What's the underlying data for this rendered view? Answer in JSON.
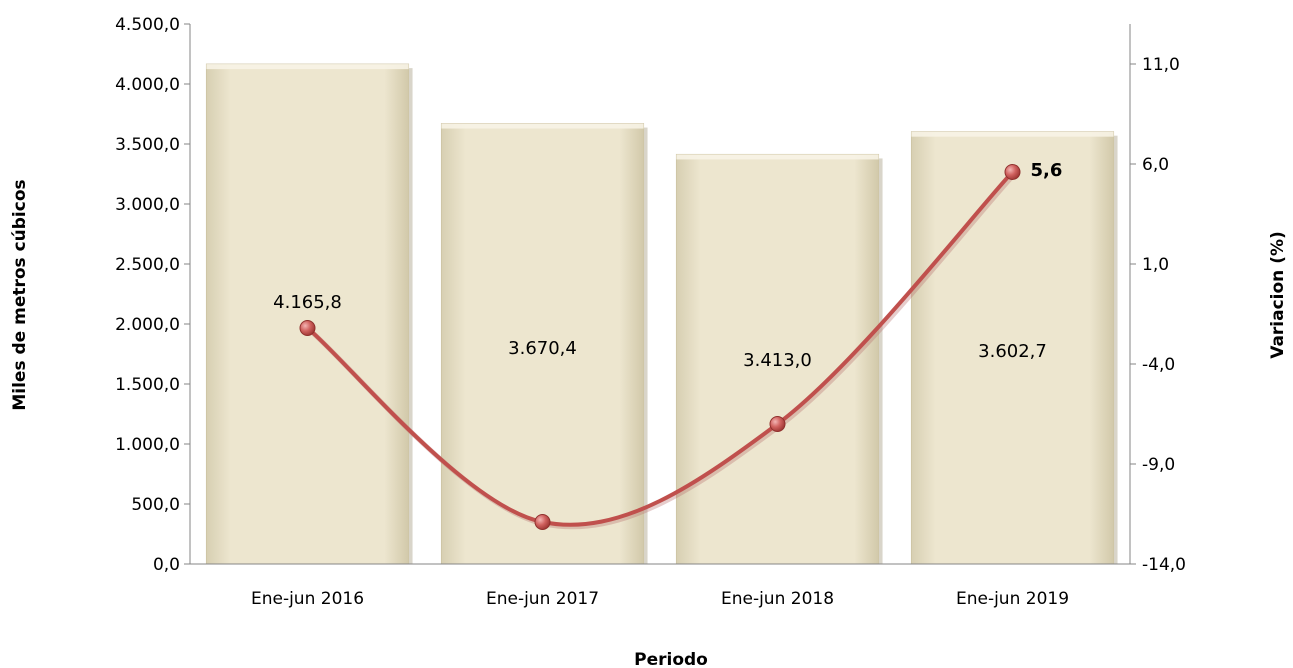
{
  "chart_data": {
    "type": "bar",
    "categories": [
      "Ene-jun 2016",
      "Ene-jun 2017",
      "Ene-jun 2018",
      "Ene-jun 2019"
    ],
    "series": [
      {
        "values": [
          4165.8,
          3670.4,
          3413.0,
          3602.7
        ],
        "axis": "left",
        "color": "#ebe3c9"
      },
      {
        "type": "line",
        "values": [
          null,
          -11.9,
          -7.0,
          5.6
        ],
        "axis": "right",
        "color": "#c0504d"
      }
    ],
    "bar_labels": [
      "4.165,8",
      "3.670,4",
      "3.413,0",
      "3.602,7"
    ],
    "line_labels": [
      "",
      "",
      "",
      "5,6"
    ],
    "xlabel": "Periodo",
    "ylabel": "Miles de metros cúbicos",
    "y2label": "Variacion (%)",
    "ylim": [
      0,
      4500
    ],
    "yticks": [
      "0,0",
      "500,0",
      "1.000,0",
      "1.500,0",
      "2.000,0",
      "2.500,0",
      "3.000,0",
      "3.500,0",
      "4.000,0",
      "4.500,0"
    ],
    "y2lim": [
      -14,
      13
    ],
    "y2ticks": [
      "-14,0",
      "-9,0",
      "-4,0",
      "1,0",
      "6,0",
      "11,0"
    ],
    "y2tick_values": [
      -14,
      -9,
      -4,
      1,
      6,
      11
    ],
    "grid": false,
    "legend": "none"
  }
}
